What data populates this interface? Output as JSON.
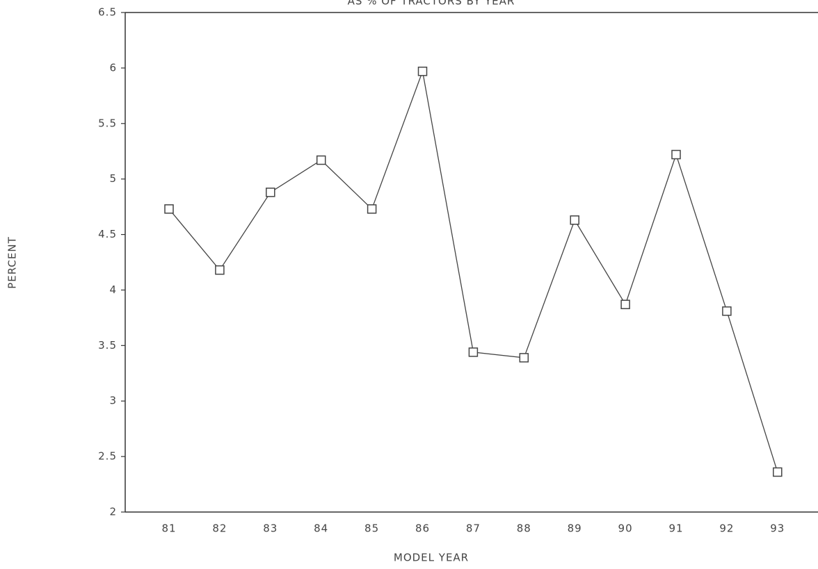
{
  "chart_data": {
    "type": "line",
    "title": "AS % OF TRACTORS BY YEAR",
    "x_label": "MODEL YEAR",
    "y_label": "PERCENT",
    "categories": [
      "81",
      "82",
      "83",
      "84",
      "85",
      "86",
      "87",
      "88",
      "89",
      "90",
      "91",
      "92",
      "93"
    ],
    "series": [
      {
        "name": "PERCENT",
        "color": "#444444",
        "values": [
          4.73,
          4.18,
          4.88,
          5.17,
          4.73,
          5.97,
          3.44,
          3.39,
          4.63,
          3.87,
          5.22,
          3.81,
          2.36
        ]
      }
    ],
    "ylim": [
      2,
      6.5
    ],
    "yticks": [
      2,
      2.5,
      3,
      3.5,
      4,
      4.5,
      5,
      5.5,
      6,
      6.5
    ],
    "grid": false
  }
}
